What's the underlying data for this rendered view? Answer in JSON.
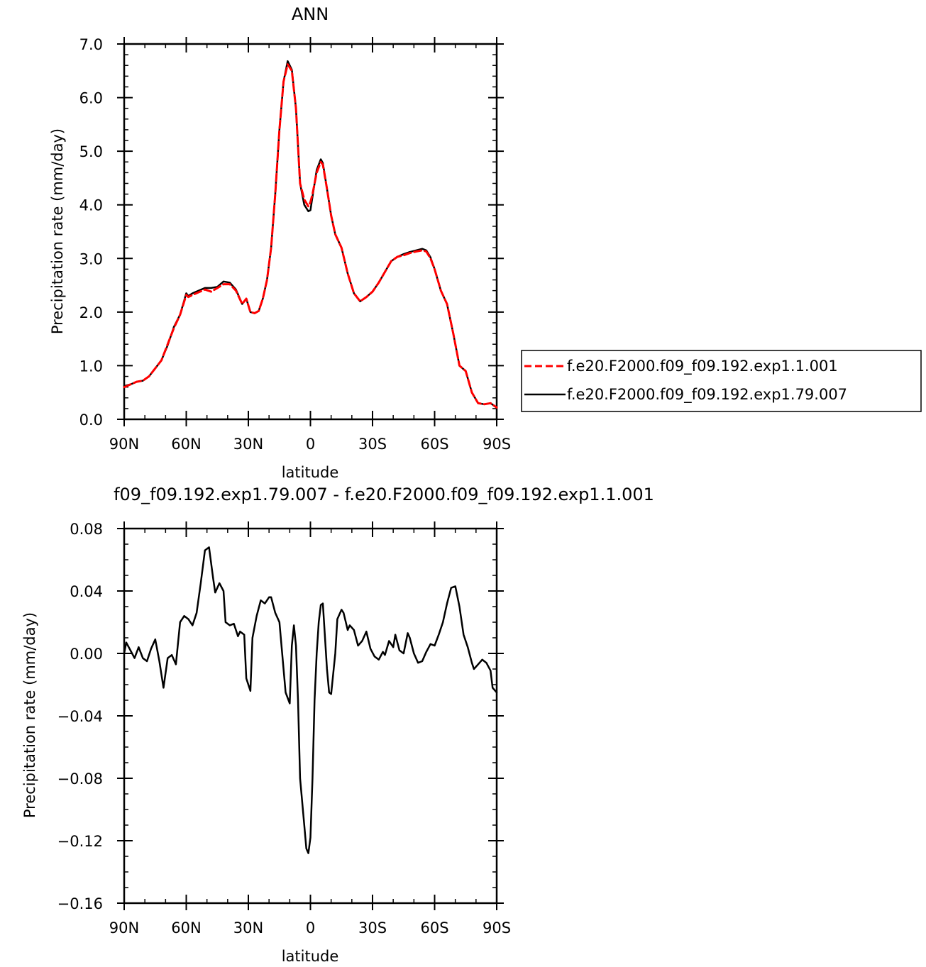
{
  "chart_data": [
    {
      "type": "line",
      "title": "ANN",
      "xlabel": "latitude",
      "ylabel": "Precipitation rate (mm/day)",
      "xlim": [
        90,
        -90
      ],
      "ylim": [
        0,
        7
      ],
      "xticks": [
        90,
        60,
        30,
        0,
        -30,
        -60,
        -90
      ],
      "xtick_labels": [
        "90N",
        "60N",
        "30N",
        "0",
        "30S",
        "60S",
        "90S"
      ],
      "yticks": [
        0,
        1,
        2,
        3,
        4,
        5,
        6,
        7
      ],
      "ytick_labels": [
        "0.0",
        "1.0",
        "2.0",
        "3.0",
        "4.0",
        "5.0",
        "6.0",
        "7.0"
      ],
      "legend": "right",
      "grid": false,
      "series": [
        {
          "name": "f.e20.F2000.f09_f09.192.exp1.1.001",
          "color": "#ff0000",
          "dash": true,
          "x": [
            90,
            87,
            84,
            81,
            78,
            75,
            72,
            69,
            66,
            63,
            60,
            59,
            57,
            54,
            51,
            48,
            45,
            42,
            39,
            36,
            33,
            31,
            29,
            27,
            25,
            23,
            21,
            19,
            17,
            15,
            13,
            11,
            9,
            7,
            6,
            5,
            3,
            1,
            0,
            -1,
            -3,
            -5,
            -6,
            -8,
            -10,
            -12,
            -15,
            -18,
            -21,
            -24,
            -27,
            -30,
            -33,
            -36,
            -39,
            -42,
            -45,
            -48,
            -51,
            -54,
            -56,
            -58,
            -60,
            -63,
            -66,
            -69,
            -72,
            -75,
            -78,
            -81,
            -84,
            -87,
            -90
          ],
          "values": [
            0.6,
            0.65,
            0.7,
            0.72,
            0.8,
            0.95,
            1.1,
            1.4,
            1.7,
            1.95,
            2.32,
            2.28,
            2.32,
            2.37,
            2.42,
            2.38,
            2.45,
            2.52,
            2.52,
            2.4,
            2.15,
            2.25,
            2.0,
            1.98,
            2.02,
            2.25,
            2.6,
            3.2,
            4.2,
            5.4,
            6.3,
            6.62,
            6.5,
            5.8,
            5.1,
            4.4,
            4.1,
            3.97,
            4.05,
            4.2,
            4.6,
            4.8,
            4.75,
            4.3,
            3.8,
            3.45,
            3.2,
            2.72,
            2.35,
            2.2,
            2.28,
            2.38,
            2.55,
            2.75,
            2.95,
            3.03,
            3.06,
            3.1,
            3.13,
            3.15,
            3.13,
            3.0,
            2.8,
            2.4,
            2.15,
            1.6,
            1.0,
            0.9,
            0.5,
            0.3,
            0.28,
            0.3,
            0.22
          ]
        },
        {
          "name": "f.e20.F2000.f09_f09.192.exp1.79.007",
          "color": "#000000",
          "dash": false,
          "x": [
            90,
            87,
            84,
            81,
            78,
            75,
            72,
            69,
            66,
            63,
            60,
            59,
            57,
            54,
            51,
            48,
            45,
            42,
            39,
            36,
            33,
            31,
            29,
            27,
            25,
            23,
            21,
            19,
            17,
            15,
            13,
            11,
            9,
            7,
            6,
            5,
            3,
            1,
            0,
            -1,
            -3,
            -5,
            -6,
            -8,
            -10,
            -12,
            -15,
            -18,
            -21,
            -24,
            -27,
            -30,
            -33,
            -36,
            -39,
            -42,
            -45,
            -48,
            -51,
            -54,
            -56,
            -58,
            -60,
            -63,
            -66,
            -69,
            -72,
            -75,
            -78,
            -81,
            -84,
            -87,
            -90
          ],
          "values": [
            0.62,
            0.65,
            0.7,
            0.72,
            0.8,
            0.95,
            1.1,
            1.38,
            1.72,
            1.95,
            2.35,
            2.3,
            2.35,
            2.4,
            2.45,
            2.45,
            2.47,
            2.57,
            2.55,
            2.42,
            2.15,
            2.25,
            2.0,
            1.98,
            2.02,
            2.25,
            2.6,
            3.2,
            4.2,
            5.4,
            6.3,
            6.68,
            6.52,
            5.8,
            5.1,
            4.4,
            4.0,
            3.88,
            3.9,
            4.15,
            4.65,
            4.85,
            4.78,
            4.3,
            3.8,
            3.45,
            3.2,
            2.72,
            2.35,
            2.2,
            2.28,
            2.38,
            2.55,
            2.75,
            2.95,
            3.03,
            3.08,
            3.12,
            3.15,
            3.18,
            3.15,
            3.02,
            2.8,
            2.4,
            2.15,
            1.6,
            1.0,
            0.9,
            0.5,
            0.3,
            0.28,
            0.3,
            0.22
          ]
        }
      ]
    },
    {
      "type": "line",
      "title": "f09_f09.192.exp1.79.007 - f.e20.F2000.f09_f09.192.exp1.1.001",
      "xlabel": "latitude",
      "ylabel": "Precipitation rate (mm/day)",
      "xlim": [
        90,
        -90
      ],
      "ylim": [
        -0.16,
        0.08
      ],
      "xticks": [
        90,
        60,
        30,
        0,
        -30,
        -60,
        -90
      ],
      "xtick_labels": [
        "90N",
        "60N",
        "30N",
        "0",
        "30S",
        "60S",
        "90S"
      ],
      "yticks": [
        0.08,
        0.04,
        0,
        -0.04,
        -0.08,
        -0.12,
        -0.16
      ],
      "ytick_labels": [
        "0.08",
        "0.04",
        "0.00",
        "−0.04",
        "−0.08",
        "−0.12",
        "−0.16"
      ],
      "grid": false,
      "series": [
        {
          "color": "#000000",
          "x": [
            90,
            89,
            87,
            85,
            83,
            81,
            79,
            77,
            75,
            73,
            71,
            69,
            67,
            65,
            63,
            61,
            59,
            57,
            55,
            53,
            51,
            49,
            47,
            46,
            44,
            42,
            41,
            39,
            37,
            35,
            34,
            32,
            31,
            29,
            28,
            26,
            24,
            22,
            20,
            19,
            17,
            15,
            14,
            12,
            10,
            9,
            8,
            7,
            6,
            5,
            3,
            2,
            1,
            0,
            -1,
            -2,
            -3,
            -4,
            -5,
            -6,
            -8,
            -9,
            -10,
            -12,
            -13,
            -15,
            -16,
            -18,
            -19,
            -21,
            -23,
            -25,
            -27,
            -29,
            -31,
            -33,
            -35,
            -36,
            -38,
            -40,
            -41,
            -43,
            -45,
            -47,
            -48,
            -50,
            -52,
            -54,
            -56,
            -58,
            -60,
            -62,
            -64,
            -66,
            -68,
            -70,
            -72,
            -74,
            -76,
            -78,
            -79,
            -81,
            -83,
            -85,
            -87,
            -88,
            -90
          ],
          "values": [
            0.0,
            0.007,
            0.002,
            -0.003,
            0.004,
            -0.003,
            -0.005,
            0.003,
            0.009,
            -0.005,
            -0.022,
            -0.003,
            -0.001,
            -0.007,
            0.02,
            0.024,
            0.022,
            0.018,
            0.026,
            0.045,
            0.066,
            0.068,
            0.048,
            0.039,
            0.045,
            0.04,
            0.02,
            0.018,
            0.019,
            0.011,
            0.014,
            0.012,
            -0.016,
            -0.024,
            0.01,
            0.024,
            0.034,
            0.032,
            0.036,
            0.036,
            0.026,
            0.02,
            0.005,
            -0.025,
            -0.032,
            0.005,
            0.018,
            0.005,
            -0.03,
            -0.08,
            -0.11,
            -0.125,
            -0.128,
            -0.118,
            -0.08,
            -0.03,
            0.0,
            0.02,
            0.031,
            0.032,
            -0.01,
            -0.025,
            -0.026,
            0.0,
            0.022,
            0.028,
            0.026,
            0.015,
            0.018,
            0.015,
            0.005,
            0.008,
            0.014,
            0.003,
            -0.002,
            -0.004,
            0.001,
            -0.001,
            0.008,
            0.004,
            0.012,
            0.002,
            0.0,
            0.013,
            0.01,
            0.0,
            -0.006,
            -0.005,
            0.001,
            0.006,
            0.005,
            0.012,
            0.02,
            0.032,
            0.042,
            0.043,
            0.03,
            0.012,
            0.004,
            -0.006,
            -0.01,
            -0.007,
            -0.004,
            -0.006,
            -0.011,
            -0.022,
            -0.025
          ]
        }
      ]
    }
  ]
}
